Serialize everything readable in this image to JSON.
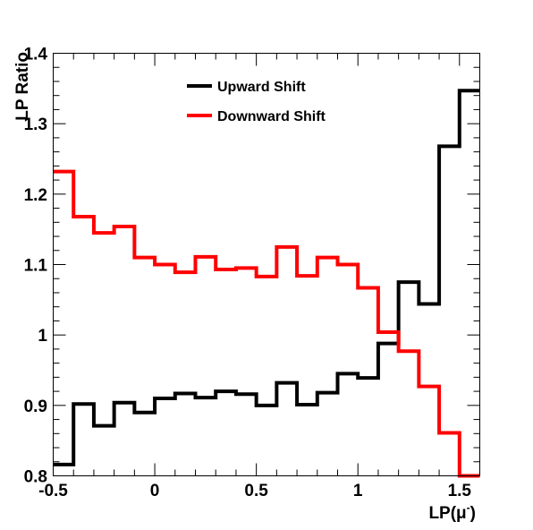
{
  "chart_data": {
    "type": "line",
    "style": "step-histogram",
    "xlabel": "LP(μ⁻)",
    "xlabel_parts": {
      "main": "LP(μ",
      "sup": "-",
      "close": ")"
    },
    "ylabel": "LP Ratio",
    "xlim": [
      -0.5,
      1.6
    ],
    "ylim": [
      0.8,
      1.4
    ],
    "xticks": [
      -0.5,
      0,
      0.5,
      1,
      1.5
    ],
    "xtick_labels": [
      "-0.5",
      "0",
      "0.5",
      "1",
      "1.5"
    ],
    "yticks": [
      0.8,
      0.9,
      1.0,
      1.1,
      1.2,
      1.3,
      1.4
    ],
    "ytick_labels": [
      "0.8",
      "0.9",
      "1",
      "1.1",
      "1.2",
      "1.3",
      "1.4"
    ],
    "x_minor_step": 0.1,
    "y_minor_step": 0.02,
    "grid": false,
    "legend_position": "top-center",
    "bin_edges": [
      -0.5,
      -0.4,
      -0.3,
      -0.2,
      -0.1,
      0.0,
      0.1,
      0.2,
      0.3,
      0.4,
      0.5,
      0.6,
      0.7,
      0.8,
      0.9,
      1.0,
      1.1,
      1.2,
      1.3,
      1.4,
      1.5,
      1.6
    ],
    "series": [
      {
        "name": "Upward Shift",
        "color": "#000000",
        "values": [
          0.816,
          0.902,
          0.871,
          0.904,
          0.89,
          0.91,
          0.917,
          0.911,
          0.92,
          0.916,
          0.9,
          0.932,
          0.901,
          0.918,
          0.945,
          0.939,
          0.988,
          1.075,
          1.044,
          1.268,
          1.347
        ]
      },
      {
        "name": "Downward Shift",
        "color": "#ff0000",
        "values": [
          1.232,
          1.168,
          1.145,
          1.154,
          1.11,
          1.1,
          1.089,
          1.111,
          1.093,
          1.095,
          1.083,
          1.125,
          1.084,
          1.11,
          1.1,
          1.067,
          1.004,
          0.977,
          0.927,
          0.861,
          0.8
        ]
      }
    ]
  }
}
